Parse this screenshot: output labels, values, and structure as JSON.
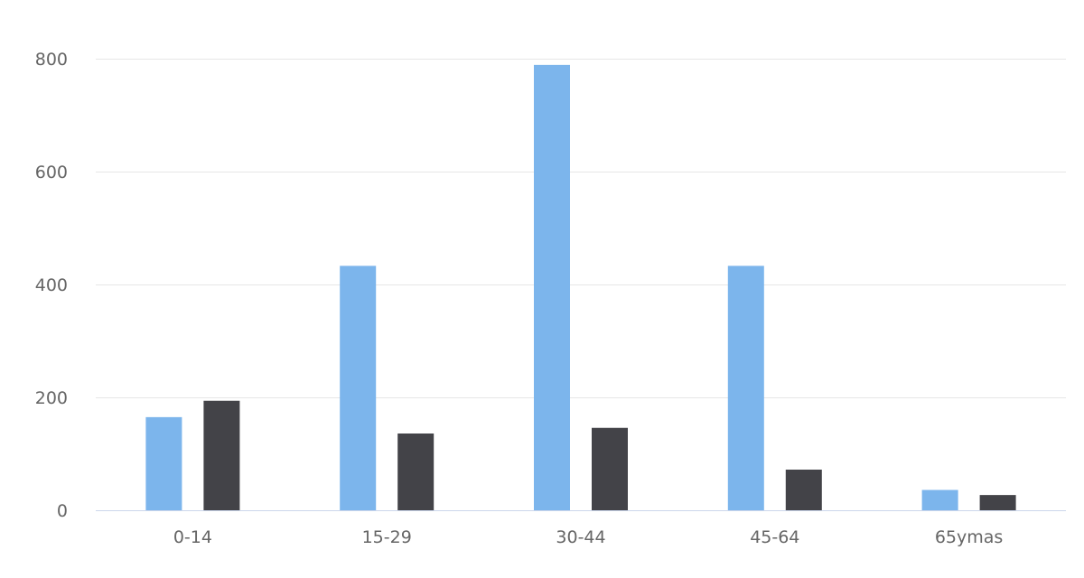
{
  "chart_data": {
    "type": "bar",
    "title": "",
    "xlabel": "",
    "ylabel": "",
    "categories": [
      "0-14",
      "15-29",
      "30-44",
      "45-64",
      "65ymas"
    ],
    "series": [
      {
        "color": "#7cb5ec",
        "values": [
          165,
          433,
          789,
          433,
          36
        ]
      },
      {
        "color": "#434348",
        "values": [
          194,
          136,
          146,
          72,
          27
        ]
      }
    ],
    "ylim": [
      0,
      800
    ],
    "yticks": [
      0,
      200,
      400,
      600,
      800
    ],
    "grid": true,
    "legend": "none"
  }
}
